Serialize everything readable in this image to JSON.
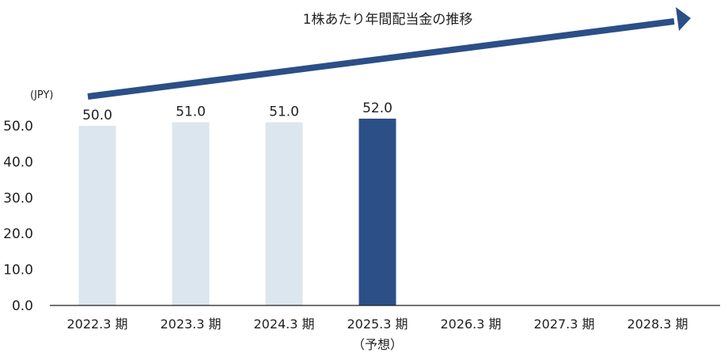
{
  "chart_data": {
    "type": "bar",
    "title": "1株あたり年間配当金の推移",
    "unit_label": "(JPY)",
    "categories": [
      "2022.3 期",
      "2023.3 期",
      "2024.3 期",
      "2025.3 期",
      "2026.3 期",
      "2027.3 期",
      "2028.3 期"
    ],
    "category_notes": [
      "",
      "",
      "",
      "（予想）",
      "",
      "",
      ""
    ],
    "values": [
      50.0,
      51.0,
      51.0,
      52.0,
      null,
      null,
      null
    ],
    "value_labels": [
      "50.0",
      "51.0",
      "51.0",
      "52.0",
      "",
      "",
      ""
    ],
    "y_ticks": [
      "0.0",
      "10.0",
      "20.0",
      "30.0",
      "40.0",
      "50.0"
    ],
    "ylim": [
      0,
      50
    ],
    "grid": false,
    "colors": {
      "actual_bar": "#dce6ee",
      "forecast_bar": "#2b4f86",
      "trend_arrow": "#2b4f86",
      "axis": "#231f20"
    },
    "highlight_index": 3
  }
}
